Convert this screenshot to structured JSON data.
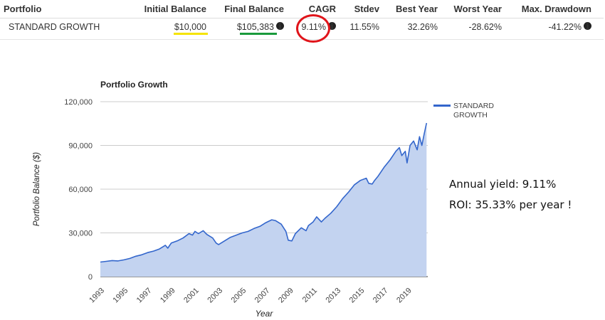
{
  "table": {
    "headers": {
      "portfolio": "Portfolio",
      "initial": "Initial Balance",
      "final": "Final Balance",
      "cagr": "CAGR",
      "stdev": "Stdev",
      "best": "Best Year",
      "worst": "Worst Year",
      "drawdown": "Max. Drawdown"
    },
    "row": {
      "portfolio": "STANDARD GROWTH",
      "initial": "$10,000",
      "final": "$105,383",
      "cagr": "9.11%",
      "stdev": "11.55%",
      "best": "32.26%",
      "worst": "-28.62%",
      "drawdown": "-41.22%"
    },
    "info_icon": "info-icon",
    "highlight_colors": {
      "initial_underline": "#f5e400",
      "final_underline": "#1a9a3c",
      "cagr_circle": "#e0141a"
    }
  },
  "annotations": {
    "yield": "Annual yield: 9.11%",
    "roi": "ROI: 35.33% per year !"
  },
  "chart_data": {
    "type": "area",
    "title": "Portfolio Growth",
    "xlabel": "Year",
    "ylabel": "Portfolio Balance ($)",
    "xlim": [
      1993,
      2020.7
    ],
    "ylim": [
      0,
      120000
    ],
    "y_ticks": [
      0,
      30000,
      60000,
      90000,
      120000
    ],
    "y_tick_labels": [
      "0",
      "30,000",
      "60,000",
      "90,000",
      "120,000"
    ],
    "x_ticks": [
      1993,
      1995,
      1997,
      1999,
      2001,
      2003,
      2005,
      2007,
      2009,
      2011,
      2013,
      2015,
      2017,
      2019
    ],
    "x_tick_labels": [
      "1993",
      "1995",
      "1997",
      "1999",
      "2001",
      "2003",
      "2005",
      "2007",
      "2009",
      "2011",
      "2013",
      "2015",
      "2017",
      "2019"
    ],
    "grid": true,
    "legend_position": "top-right",
    "line_color": "#3366cc",
    "fill_color": "#c3d3f0",
    "series": [
      {
        "name": "STANDARD GROWTH",
        "x": [
          1993.0,
          1993.5,
          1994.0,
          1994.5,
          1995.0,
          1995.5,
          1996.0,
          1996.5,
          1997.0,
          1997.5,
          1998.0,
          1998.5,
          1998.7,
          1999.0,
          1999.5,
          2000.0,
          2000.5,
          2000.8,
          2001.0,
          2001.3,
          2001.7,
          2002.0,
          2002.5,
          2002.8,
          2003.0,
          2003.5,
          2004.0,
          2004.5,
          2005.0,
          2005.5,
          2006.0,
          2006.5,
          2007.0,
          2007.5,
          2007.8,
          2008.3,
          2008.7,
          2008.9,
          2009.2,
          2009.5,
          2010.0,
          2010.4,
          2010.6,
          2011.0,
          2011.3,
          2011.7,
          2012.0,
          2012.5,
          2013.0,
          2013.5,
          2014.0,
          2014.5,
          2015.0,
          2015.5,
          2015.7,
          2016.0,
          2016.2,
          2016.5,
          2017.0,
          2017.5,
          2018.0,
          2018.3,
          2018.5,
          2018.8,
          2018.95,
          2019.2,
          2019.5,
          2019.8,
          2020.0,
          2020.2,
          2020.4,
          2020.6
        ],
        "values": [
          10000,
          10500,
          11000,
          10800,
          11500,
          12500,
          14000,
          15000,
          16500,
          17500,
          19000,
          21500,
          19500,
          23000,
          24500,
          26500,
          29500,
          28500,
          31000,
          29500,
          31500,
          29000,
          26500,
          23000,
          22000,
          24500,
          27000,
          28500,
          30000,
          31000,
          33000,
          34500,
          37000,
          39000,
          38500,
          36000,
          31000,
          25000,
          24500,
          29500,
          33500,
          31500,
          35000,
          37500,
          41000,
          37500,
          40000,
          43500,
          48000,
          53500,
          58000,
          63000,
          66000,
          67500,
          64000,
          63500,
          66000,
          69000,
          75000,
          80000,
          86000,
          88500,
          83000,
          86000,
          78000,
          90000,
          93000,
          87000,
          96000,
          90000,
          98000,
          105383
        ]
      }
    ]
  }
}
